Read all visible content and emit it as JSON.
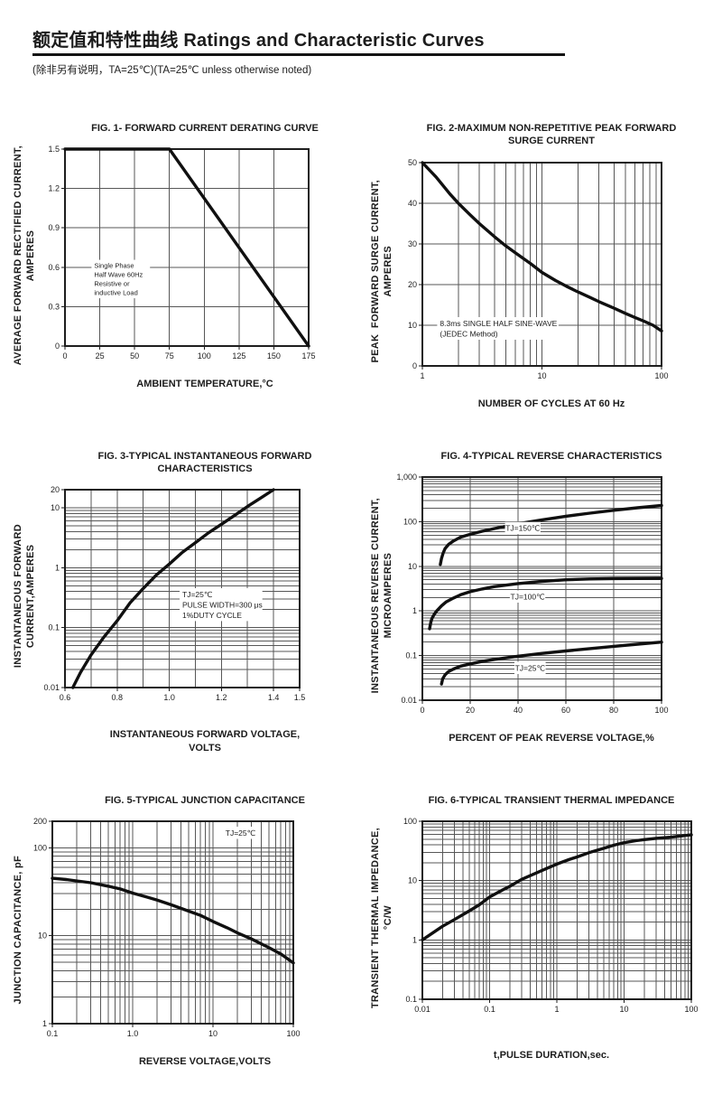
{
  "header": {
    "title": "额定值和特性曲线 Ratings and Characteristic Curves",
    "subtitle": "(除非另有说明，TA=25℃)(TA=25℃  unless otherwise noted)"
  },
  "chart_data": [
    {
      "name": "fig1",
      "type": "line",
      "title": "FIG. 1- FORWARD CURRENT DERATING CURVE",
      "xlabel": "AMBIENT TEMPERATURE,°C",
      "ylabel": "AVERAGE FORWARD RECTIFIED CURRENT,\nAMPERES",
      "x_scale": "linear",
      "y_scale": "linear",
      "xlim": [
        0,
        175
      ],
      "ylim": [
        0,
        1.5
      ],
      "x_ticks": [
        {
          "v": 0,
          "t": "0"
        },
        {
          "v": 25,
          "t": "25"
        },
        {
          "v": 50,
          "t": "50"
        },
        {
          "v": 75,
          "t": "75"
        },
        {
          "v": 100,
          "t": "100"
        },
        {
          "v": 125,
          "t": "125"
        },
        {
          "v": 150,
          "t": "150"
        },
        {
          "v": 175,
          "t": "175"
        }
      ],
      "y_ticks": [
        {
          "v": 0,
          "t": "0"
        },
        {
          "v": 0.3,
          "t": "0.3"
        },
        {
          "v": 0.6,
          "t": "0.6"
        },
        {
          "v": 0.9,
          "t": "0.9"
        },
        {
          "v": 1.2,
          "t": "1.2"
        },
        {
          "v": 1.5,
          "t": "1.5"
        }
      ],
      "series": [
        {
          "key": "forward-current-derating",
          "points": [
            [
              0,
              1.5
            ],
            [
              75,
              1.5
            ],
            [
              175,
              0
            ]
          ]
        }
      ],
      "annotations": [
        {
          "x": 21,
          "y": 0.615,
          "anchor": "start",
          "size": 7.5,
          "lines": [
            "Single Phase",
            "Half Wave 60Hz",
            "Resistive or",
            "inductive Load"
          ]
        }
      ],
      "plot_size": [
        270,
        218
      ]
    },
    {
      "name": "fig2",
      "type": "line",
      "title": "FIG. 2-MAXIMUM NON-REPETITIVE PEAK FORWARD\nSURGE CURRENT",
      "xlabel": "NUMBER OF CYCLES AT 60 Hz",
      "ylabel": "PEAK  FORWARD SURGE CURRENT,\nAMPERES",
      "x_scale": "log",
      "y_scale": "linear",
      "xlim": [
        1,
        100
      ],
      "ylim": [
        0,
        50
      ],
      "x_ticks": [
        {
          "v": 1,
          "t": "1"
        },
        {
          "v": 10,
          "t": "10"
        },
        {
          "v": 100,
          "t": "100"
        }
      ],
      "y_ticks": [
        {
          "v": 0,
          "t": "0"
        },
        {
          "v": 10,
          "t": "10"
        },
        {
          "v": 20,
          "t": "20"
        },
        {
          "v": 30,
          "t": "30"
        },
        {
          "v": 40,
          "t": "40"
        },
        {
          "v": 50,
          "t": "50"
        }
      ],
      "series": [
        {
          "key": "peak-surge-current",
          "points": [
            [
              1,
              50
            ],
            [
              1.3,
              46.5
            ],
            [
              1.7,
              42.3
            ],
            [
              2,
              40
            ],
            [
              2.5,
              37.2
            ],
            [
              3,
              35
            ],
            [
              4,
              31.8
            ],
            [
              5,
              29.5
            ],
            [
              6,
              27.8
            ],
            [
              8,
              25.2
            ],
            [
              10,
              23
            ],
            [
              13,
              21
            ],
            [
              16,
              19.6
            ],
            [
              20,
              18.2
            ],
            [
              25,
              16.9
            ],
            [
              30,
              15.8
            ],
            [
              40,
              14.2
            ],
            [
              50,
              12.9
            ],
            [
              60,
              11.9
            ],
            [
              70,
              11.1
            ],
            [
              85,
              10
            ],
            [
              100,
              8.6
            ]
          ]
        }
      ],
      "annotations": [
        {
          "x": 1.4,
          "y": 10.5,
          "anchor": "start",
          "size": 8.5,
          "lines": [
            "8.3ms SINGLE HALF SINE-WAVE",
            "(JEDEC Method)"
          ]
        }
      ],
      "plot_size": [
        265,
        225
      ]
    },
    {
      "name": "fig3",
      "type": "line",
      "title": "FIG. 3-TYPICAL INSTANTANEOUS FORWARD\nCHARACTERISTICS",
      "xlabel": "INSTANTANEOUS FORWARD VOLTAGE,\nVOLTS",
      "ylabel": "INSTANTANEOUS FORWARD\nCURRENT,AMPERES",
      "x_scale": "linear",
      "y_scale": "log",
      "xlim": [
        0.6,
        1.5
      ],
      "ylim": [
        0.01,
        20
      ],
      "x_grid": [
        0.7,
        0.8,
        0.9,
        1.0,
        1.1,
        1.2,
        1.3,
        1.4
      ],
      "x_ticks": [
        {
          "v": 0.6,
          "t": "0.6"
        },
        {
          "v": 0.8,
          "t": "0.8"
        },
        {
          "v": 1.0,
          "t": "1.0"
        },
        {
          "v": 1.2,
          "t": "1.2"
        },
        {
          "v": 1.4,
          "t": "1.4"
        },
        {
          "v": 1.5,
          "t": "1.5"
        }
      ],
      "y_ticks": [
        {
          "v": 0.01,
          "t": "0.01"
        },
        {
          "v": 0.1,
          "t": "0.1"
        },
        {
          "v": 1,
          "t": "1"
        },
        {
          "v": 10,
          "t": "10"
        },
        {
          "v": 20,
          "t": "20"
        }
      ],
      "series": [
        {
          "key": "instantaneous-forward",
          "points": [
            [
              0.63,
              0.01
            ],
            [
              0.66,
              0.018
            ],
            [
              0.7,
              0.035
            ],
            [
              0.75,
              0.07
            ],
            [
              0.8,
              0.13
            ],
            [
              0.85,
              0.26
            ],
            [
              0.9,
              0.45
            ],
            [
              0.95,
              0.75
            ],
            [
              1.0,
              1.15
            ],
            [
              1.05,
              1.8
            ],
            [
              1.1,
              2.6
            ],
            [
              1.15,
              3.8
            ],
            [
              1.2,
              5.3
            ],
            [
              1.25,
              7.4
            ],
            [
              1.3,
              10.5
            ],
            [
              1.35,
              14.5
            ],
            [
              1.4,
              20
            ]
          ]
        }
      ],
      "annotations": [
        {
          "x": 1.05,
          "y": 0.36,
          "anchor": "start",
          "size": 8.5,
          "lines": [
            "TJ=25℃",
            "PULSE WIDTH=300 μs",
            "1%DUTY CYCLE"
          ]
        }
      ],
      "plot_size": [
        260,
        219
      ]
    },
    {
      "name": "fig4",
      "type": "line",
      "title": "FIG. 4-TYPICAL REVERSE CHARACTERISTICS",
      "xlabel": "PERCENT OF PEAK REVERSE VOLTAGE,%",
      "ylabel": "INSTANTANEOUS REVERSE CURRENT,\nMICROAMPERES",
      "x_scale": "linear",
      "y_scale": "log",
      "xlim": [
        0,
        100
      ],
      "ylim": [
        0.01,
        1000
      ],
      "x_ticks": [
        {
          "v": 0,
          "t": "0"
        },
        {
          "v": 20,
          "t": "20"
        },
        {
          "v": 40,
          "t": "40"
        },
        {
          "v": 60,
          "t": "60"
        },
        {
          "v": 80,
          "t": "80"
        },
        {
          "v": 100,
          "t": "100"
        }
      ],
      "y_ticks": [
        {
          "v": 0.01,
          "t": "0.01"
        },
        {
          "v": 0.1,
          "t": "0.1"
        },
        {
          "v": 1,
          "t": "1"
        },
        {
          "v": 10,
          "t": "10"
        },
        {
          "v": 100,
          "t": "100"
        },
        {
          "v": 1000,
          "t": "1,000"
        }
      ],
      "series": [
        {
          "key": "tj-150c",
          "points": [
            [
              7.5,
              11
            ],
            [
              8,
              15
            ],
            [
              8.7,
              20
            ],
            [
              9.5,
              25
            ],
            [
              11,
              31
            ],
            [
              13,
              37
            ],
            [
              16,
              45
            ],
            [
              20,
              52
            ],
            [
              25,
              61
            ],
            [
              30,
              70
            ],
            [
              40,
              90
            ],
            [
              50,
              110
            ],
            [
              60,
              132
            ],
            [
              70,
              155
            ],
            [
              80,
              180
            ],
            [
              90,
              205
            ],
            [
              100,
              230
            ]
          ]
        },
        {
          "key": "tj-100c",
          "points": [
            [
              3,
              0.4
            ],
            [
              3.5,
              0.55
            ],
            [
              4,
              0.68
            ],
            [
              5,
              0.85
            ],
            [
              6,
              1.0
            ],
            [
              8,
              1.3
            ],
            [
              10,
              1.6
            ],
            [
              13,
              1.95
            ],
            [
              16,
              2.3
            ],
            [
              20,
              2.7
            ],
            [
              25,
              3.1
            ],
            [
              30,
              3.5
            ],
            [
              40,
              4.1
            ],
            [
              50,
              4.6
            ],
            [
              60,
              5.0
            ],
            [
              70,
              5.2
            ],
            [
              80,
              5.3
            ],
            [
              100,
              5.35
            ]
          ]
        },
        {
          "key": "tj-25c",
          "points": [
            [
              8,
              0.023
            ],
            [
              8.5,
              0.03
            ],
            [
              9.5,
              0.037
            ],
            [
              11,
              0.044
            ],
            [
              13,
              0.05
            ],
            [
              16,
              0.058
            ],
            [
              20,
              0.065
            ],
            [
              25,
              0.074
            ],
            [
              30,
              0.082
            ],
            [
              40,
              0.097
            ],
            [
              50,
              0.112
            ],
            [
              60,
              0.127
            ],
            [
              70,
              0.143
            ],
            [
              80,
              0.161
            ],
            [
              90,
              0.18
            ],
            [
              100,
              0.2
            ]
          ]
        }
      ],
      "annotations": [
        {
          "x": 42,
          "y": 72,
          "anchor": "middle",
          "size": 8.5,
          "lines": [
            "TJ=150℃"
          ]
        },
        {
          "x": 44,
          "y": 2.1,
          "anchor": "middle",
          "size": 8.5,
          "lines": [
            "TJ=100℃"
          ]
        },
        {
          "x": 45,
          "y": 0.053,
          "anchor": "middle",
          "size": 8.5,
          "lines": [
            "TJ=25℃"
          ]
        }
      ],
      "plot_size": [
        265,
        247
      ]
    },
    {
      "name": "fig5",
      "type": "line",
      "title": "FIG. 5-TYPICAL JUNCTION CAPACITANCE",
      "xlabel": "REVERSE VOLTAGE,VOLTS",
      "ylabel": "JUNCTION CAPACITANCE, pF",
      "x_scale": "log",
      "y_scale": "log",
      "xlim": [
        0.1,
        100
      ],
      "ylim": [
        1,
        200
      ],
      "x_ticks": [
        {
          "v": 0.1,
          "t": "0.1"
        },
        {
          "v": 1,
          "t": "1.0"
        },
        {
          "v": 10,
          "t": "10"
        },
        {
          "v": 100,
          "t": "100"
        }
      ],
      "y_ticks": [
        {
          "v": 1,
          "t": "1"
        },
        {
          "v": 10,
          "t": "10"
        },
        {
          "v": 100,
          "t": "100"
        },
        {
          "v": 200,
          "t": "200"
        }
      ],
      "series": [
        {
          "key": "junction-capacitance",
          "points": [
            [
              0.1,
              45
            ],
            [
              0.15,
              43.5
            ],
            [
              0.2,
              42
            ],
            [
              0.3,
              40
            ],
            [
              0.5,
              36.5
            ],
            [
              0.7,
              34
            ],
            [
              1,
              30.5
            ],
            [
              1.5,
              27.5
            ],
            [
              2,
              25.5
            ],
            [
              3,
              22.5
            ],
            [
              5,
              19
            ],
            [
              7,
              17
            ],
            [
              10,
              14.5
            ],
            [
              15,
              12.3
            ],
            [
              20,
              10.8
            ],
            [
              30,
              9.2
            ],
            [
              50,
              7.3
            ],
            [
              70,
              6.2
            ],
            [
              100,
              4.9
            ]
          ]
        }
      ],
      "annotations": [
        {
          "x": 22,
          "y": 148,
          "anchor": "middle",
          "size": 8.5,
          "lines": [
            "TJ=25℃"
          ]
        }
      ],
      "plot_size": [
        267,
        224
      ]
    },
    {
      "name": "fig6",
      "type": "line",
      "title": "FIG. 6-TYPICAL TRANSIENT THERMAL IMPEDANCE",
      "xlabel": "t,PULSE DURATION,sec.",
      "ylabel": "TRANSIENT THERMAL IMPEDANCE,\n°C/W",
      "x_scale": "log",
      "y_scale": "log",
      "xlim": [
        0.01,
        100
      ],
      "ylim": [
        0.1,
        100
      ],
      "x_ticks": [
        {
          "v": 0.01,
          "t": "0.01"
        },
        {
          "v": 0.1,
          "t": "0.1"
        },
        {
          "v": 1,
          "t": "1"
        },
        {
          "v": 10,
          "t": "10"
        },
        {
          "v": 100,
          "t": "100"
        }
      ],
      "y_ticks": [
        {
          "v": 0.1,
          "t": "0.1"
        },
        {
          "v": 1,
          "t": "1"
        },
        {
          "v": 10,
          "t": "10"
        },
        {
          "v": 100,
          "t": "100"
        }
      ],
      "series": [
        {
          "key": "transient-thermal-impedance",
          "points": [
            [
              0.01,
              1
            ],
            [
              0.02,
              1.7
            ],
            [
              0.03,
              2.2
            ],
            [
              0.05,
              3.1
            ],
            [
              0.07,
              3.9
            ],
            [
              0.1,
              5.3
            ],
            [
              0.15,
              6.8
            ],
            [
              0.2,
              8
            ],
            [
              0.3,
              10.5
            ],
            [
              0.5,
              13.5
            ],
            [
              0.7,
              16
            ],
            [
              1,
              19
            ],
            [
              1.5,
              22.5
            ],
            [
              2,
              25
            ],
            [
              3,
              29.5
            ],
            [
              5,
              35
            ],
            [
              7,
              39.5
            ],
            [
              10,
              43.5
            ],
            [
              15,
              47
            ],
            [
              20,
              49
            ],
            [
              30,
              51.5
            ],
            [
              50,
              54
            ],
            [
              70,
              56.5
            ],
            [
              100,
              59
            ]
          ]
        }
      ],
      "annotations": [],
      "plot_size": [
        298,
        197
      ]
    }
  ]
}
